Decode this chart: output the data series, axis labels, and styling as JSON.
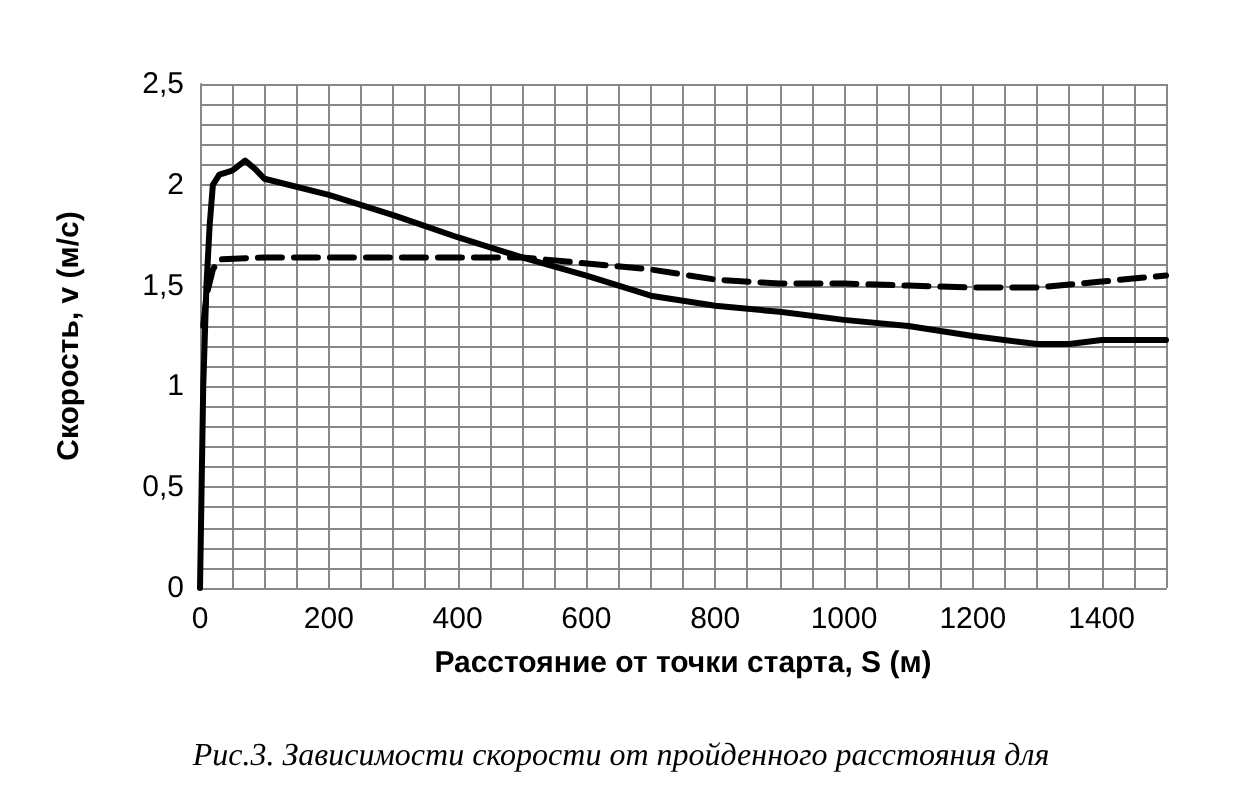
{
  "chart_data": {
    "type": "line",
    "xlabel": "Расстояние от точки старта, S (м)",
    "ylabel": "Скорость, v (м/с)",
    "annotations": [
      "Рис.3. Зависимости скорости от пройденного расстояния для"
    ],
    "grid": true,
    "marker": "none",
    "xlim": [
      0,
      1500
    ],
    "ylim": [
      0,
      2.5
    ],
    "xticks": [
      0,
      {
        "value": 50,
        "label": null
      },
      {
        "value": 100,
        "label": null
      },
      {
        "value": 150,
        "label": null
      },
      200,
      {
        "value": 250,
        "label": null
      },
      {
        "value": 300,
        "label": null
      },
      {
        "value": 350,
        "label": null
      },
      400,
      {
        "value": 450,
        "label": null
      },
      {
        "value": 500,
        "label": null
      },
      {
        "value": 550,
        "label": null
      },
      600,
      {
        "value": 650,
        "label": null
      },
      {
        "value": 700,
        "label": null
      },
      {
        "value": 750,
        "label": null
      },
      800,
      {
        "value": 850,
        "label": null
      },
      {
        "value": 900,
        "label": null
      },
      {
        "value": 950,
        "label": null
      },
      1000,
      {
        "value": 1050,
        "label": null
      },
      {
        "value": 1100,
        "label": null
      },
      {
        "value": 1150,
        "label": null
      },
      1200,
      {
        "value": 1250,
        "label": null
      },
      {
        "value": 1300,
        "label": null
      },
      {
        "value": 1350,
        "label": null
      },
      1400,
      {
        "value": 1450,
        "label": null
      },
      {
        "value": 1500,
        "label": null
      }
    ],
    "yticks": [
      0,
      {
        "value": 0.1,
        "label": null
      },
      {
        "value": 0.2,
        "label": null
      },
      {
        "value": 0.3,
        "label": null
      },
      {
        "value": 0.4,
        "label": null
      },
      {
        "value": 0.5,
        "label": "0,5"
      },
      {
        "value": 0.6,
        "label": null
      },
      {
        "value": 0.7,
        "label": null
      },
      {
        "value": 0.8,
        "label": null
      },
      {
        "value": 0.9,
        "label": null
      },
      1,
      {
        "value": 1.1,
        "label": null
      },
      {
        "value": 1.2,
        "label": null
      },
      {
        "value": 1.3,
        "label": null
      },
      {
        "value": 1.4,
        "label": null
      },
      {
        "value": 1.5,
        "label": "1,5"
      },
      {
        "value": 1.6,
        "label": null
      },
      {
        "value": 1.7,
        "label": null
      },
      {
        "value": 1.8,
        "label": null
      },
      {
        "value": 1.9,
        "label": null
      },
      2,
      {
        "value": 2.1,
        "label": null
      },
      {
        "value": 2.2,
        "label": null
      },
      {
        "value": 2.3,
        "label": null
      },
      {
        "value": 2.4,
        "label": null
      },
      {
        "value": 2.5,
        "label": "2,5"
      }
    ],
    "series": [
      {
        "color": "#000000",
        "line_style": "solid",
        "x": [
          0,
          5,
          10,
          15,
          20,
          30,
          50,
          70,
          85,
          100,
          200,
          300,
          400,
          500,
          600,
          700,
          800,
          900,
          1000,
          1100,
          1200,
          1300,
          1350,
          1400,
          1500
        ],
        "values": [
          0,
          1.0,
          1.5,
          1.8,
          2.0,
          2.05,
          2.07,
          2.12,
          2.08,
          2.03,
          1.95,
          1.85,
          1.74,
          1.64,
          1.55,
          1.45,
          1.4,
          1.37,
          1.33,
          1.3,
          1.25,
          1.21,
          1.21,
          1.23,
          1.23
        ]
      },
      {
        "color": "#000000",
        "line_style": "dashed",
        "x": [
          5,
          10,
          20,
          30,
          100,
          300,
          500,
          700,
          800,
          900,
          1000,
          1100,
          1200,
          1300,
          1400,
          1500
        ],
        "values": [
          1.3,
          1.45,
          1.58,
          1.63,
          1.64,
          1.64,
          1.64,
          1.58,
          1.53,
          1.51,
          1.51,
          1.5,
          1.49,
          1.49,
          1.52,
          1.55
        ]
      }
    ]
  }
}
